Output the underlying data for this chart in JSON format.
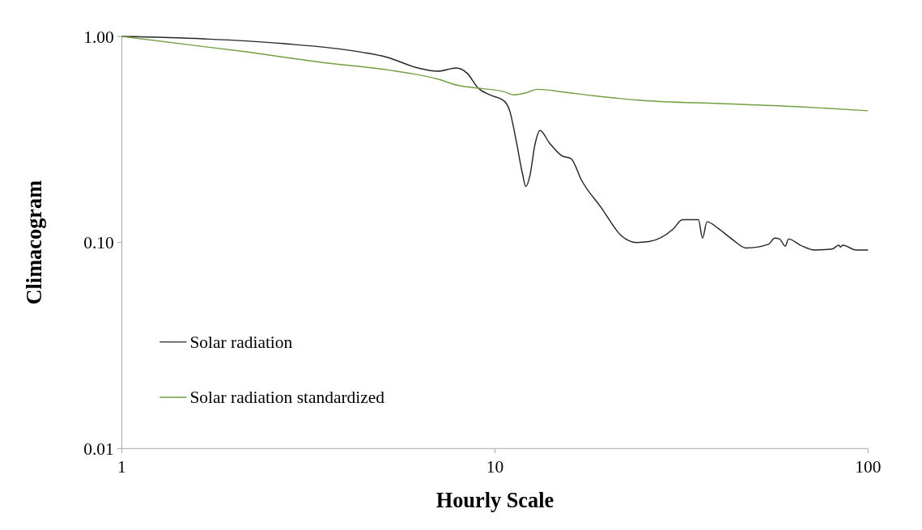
{
  "chart_data": {
    "type": "line",
    "xlabel": "Hourly Scale",
    "ylabel": "Climacogram",
    "log": "xy",
    "grid": false,
    "legend": "bottom left",
    "marker": "none",
    "line_style": "solid",
    "xlim": [
      1,
      100
    ],
    "xticks": [
      1,
      10,
      100
    ],
    "ylim": [
      0.01,
      1
    ],
    "yticks": [
      {
        "value": 0.01,
        "label": "0.01"
      },
      {
        "value": 0.1,
        "label": "0.10"
      },
      {
        "value": 1,
        "label": "1.00"
      }
    ],
    "series": [
      {
        "name": "Solar radiation",
        "color": "#262626",
        "x": [
          1,
          1.65,
          2.7,
          4.41,
          5.11,
          6.22,
          7.03,
          7.88,
          8.44,
          9.0,
          9.68,
          10.6,
          10.95,
          11.4,
          11.85,
          12.1,
          12.4,
          12.8,
          13.2,
          14.0,
          15.1,
          16.0,
          17.05,
          19.3,
          21.8,
          24.0,
          25.9,
          30.0,
          31.8,
          33.1,
          35.1,
          36.0,
          37.0,
          39.7,
          43.4,
          47.1,
          54.1,
          56.2,
          57.9,
          60.0,
          61.2,
          65.9,
          71.9,
          80.2,
          83.4,
          84.3,
          85.5,
          92.9,
          100
        ],
        "values": [
          1,
          0.974,
          0.924,
          0.838,
          0.795,
          0.703,
          0.678,
          0.703,
          0.661,
          0.564,
          0.521,
          0.485,
          0.436,
          0.312,
          0.216,
          0.187,
          0.21,
          0.299,
          0.35,
          0.304,
          0.264,
          0.255,
          0.201,
          0.147,
          0.108,
          0.1,
          0.101,
          0.116,
          0.129,
          0.129,
          0.129,
          0.105,
          0.126,
          0.117,
          0.103,
          0.094,
          0.098,
          0.105,
          0.104,
          0.096,
          0.104,
          0.097,
          0.092,
          0.093,
          0.097,
          0.095,
          0.097,
          0.092,
          0.092
        ]
      },
      {
        "name": "Solar radiation standardized",
        "color": "#70a040",
        "x": [
          1,
          2.11,
          3.45,
          5.11,
          7.03,
          7.96,
          9.22,
          10.6,
          11.2,
          12.0,
          13.0,
          15.1,
          18.3,
          24.6,
          40.3,
          65.9,
          100
        ],
        "values": [
          1,
          0.846,
          0.748,
          0.69,
          0.621,
          0.579,
          0.559,
          0.539,
          0.521,
          0.53,
          0.554,
          0.539,
          0.516,
          0.49,
          0.472,
          0.456,
          0.436
        ]
      }
    ]
  }
}
